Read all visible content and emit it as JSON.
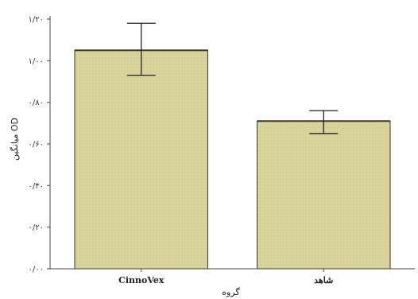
{
  "chart_data": {
    "type": "bar",
    "categories": [
      "CinnoVex",
      "شاهد"
    ],
    "values": [
      1.05,
      0.71
    ],
    "error_upper": [
      1.18,
      0.76
    ],
    "error_lower": [
      0.93,
      0.65
    ],
    "xlabel": "گروه",
    "ylabel": "میانگین OD",
    "ylim": [
      0,
      1.2
    ],
    "yticks": [
      "۰/۰۰",
      "۰/۲۰",
      "۰/۴۰",
      "۰/۶۰",
      "۰/۸۰",
      "۱/۰۰",
      "۱/۲۰"
    ],
    "grid": false,
    "colors": {
      "bar_fill": "#d8d39a",
      "bar_stroke": "#3a3a2a",
      "axis": "#444444",
      "error_bar": "#222222"
    }
  }
}
